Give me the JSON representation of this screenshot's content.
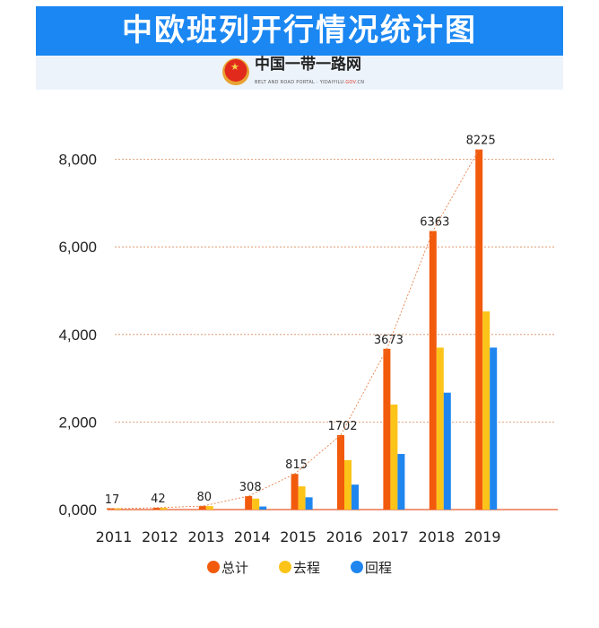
{
  "header": {
    "title": "中欧班列开行情况统计图",
    "portal_name": "中国一带一路网",
    "portal_subtitle": "BELT AND ROAD PORTAL  ·  YIDAIYILU.",
    "portal_domain_gov": "GOV",
    "portal_domain_cn": ".CN"
  },
  "chart_data": {
    "type": "bar",
    "title": "中欧班列开行情况统计图",
    "xlabel": "",
    "ylabel": "",
    "categories": [
      "2011",
      "2012",
      "2013",
      "2014",
      "2015",
      "2016",
      "2017",
      "2018",
      "2019"
    ],
    "series": [
      {
        "name": "总计",
        "color": "#f25a0c",
        "values": [
          17,
          42,
          80,
          308,
          815,
          1702,
          3673,
          6363,
          8225
        ]
      },
      {
        "name": "去程",
        "color": "#fcc419",
        "values": [
          17,
          42,
          80,
          250,
          530,
          1130,
          2400,
          3700,
          4525
        ]
      },
      {
        "name": "回程",
        "color": "#1f86ef",
        "values": [
          0,
          0,
          0,
          70,
          280,
          570,
          1270,
          2670,
          3700
        ]
      }
    ],
    "data_labels": [
      "17",
      "42",
      "80",
      "308",
      "815",
      "1702",
      "3673",
      "6363",
      "8225"
    ],
    "yticks": [
      0,
      2000,
      4000,
      6000,
      8000
    ],
    "ytick_labels": [
      "0,000",
      "2,000",
      "4,000",
      "6,000",
      "8,000"
    ],
    "ylim": [
      0,
      8500
    ],
    "grid": true,
    "trend_line": true,
    "legend_position": "bottom-center"
  }
}
